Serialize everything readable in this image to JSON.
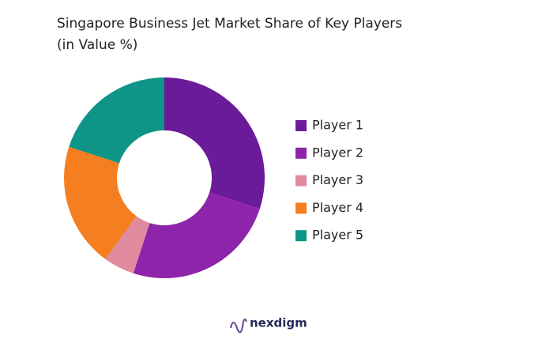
{
  "chart_data": {
    "type": "donut",
    "title": "Singapore Business Jet Market Share of Key Players",
    "subtitle": "(in Value %)",
    "categories": [
      "Player 1",
      "Player 2",
      "Player 3",
      "Player 4",
      "Player 5"
    ],
    "values": [
      30,
      25,
      5,
      20,
      20
    ],
    "colors": [
      "#6a1b9a",
      "#8e24aa",
      "#e08aa0",
      "#f47e20",
      "#0f9488"
    ],
    "legend": "right",
    "watermark": "nexdigm"
  }
}
